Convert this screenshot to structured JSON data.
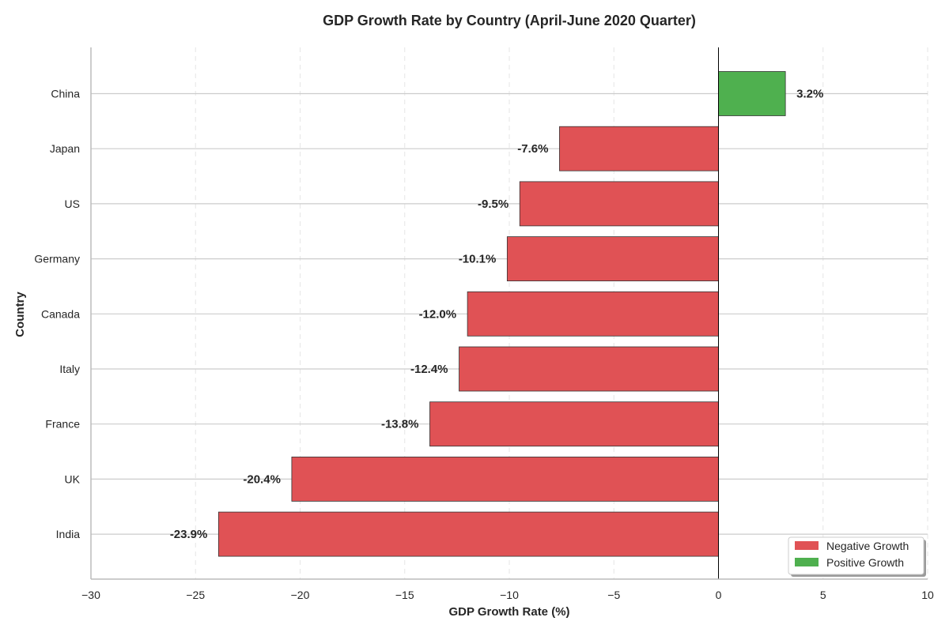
{
  "chart_data": {
    "type": "bar",
    "orientation": "horizontal",
    "title": "GDP Growth Rate by Country (April-June 2020 Quarter)",
    "xlabel": "GDP Growth Rate (%)",
    "ylabel": "Country",
    "xlim": [
      -30,
      10
    ],
    "xticks": [
      -30,
      -25,
      -20,
      -15,
      -10,
      -5,
      0,
      5,
      10
    ],
    "xtick_labels": [
      "−30",
      "−25",
      "−20",
      "−15",
      "−10",
      "−5",
      "0",
      "5",
      "10"
    ],
    "categories": [
      "China",
      "Japan",
      "US",
      "Germany",
      "Canada",
      "Italy",
      "France",
      "UK",
      "India"
    ],
    "values": [
      3.2,
      -7.6,
      -9.5,
      -10.1,
      -12.0,
      -12.4,
      -13.8,
      -20.4,
      -23.9
    ],
    "data_labels": [
      "3.2%",
      "-7.6%",
      "-9.5%",
      "-10.1%",
      "-12.0%",
      "-12.4%",
      "-13.8%",
      "-20.4%",
      "-23.9%"
    ],
    "colors": {
      "negative": "#e05255",
      "positive": "#4fb04f",
      "edge": "#333333",
      "zero_line": "#000000"
    },
    "legend": {
      "position": "bottom-right",
      "entries": [
        {
          "label": "Negative Growth",
          "color": "#e05255"
        },
        {
          "label": "Positive Growth",
          "color": "#4fb04f"
        }
      ]
    },
    "grid": {
      "x": true,
      "y": true
    }
  }
}
